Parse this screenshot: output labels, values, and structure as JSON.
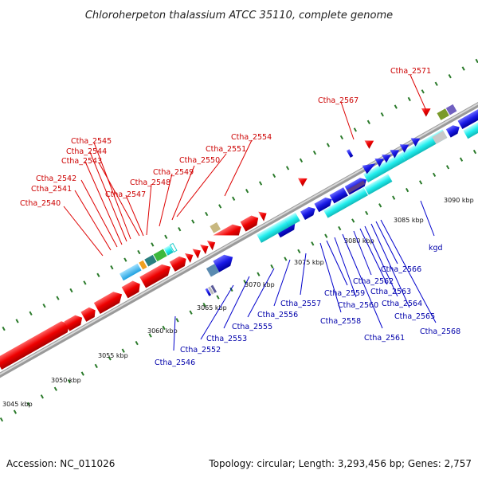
{
  "title": "Chloroherpeton thalassium ATCC 35110, complete genome",
  "footer": {
    "accession": "Accession: NC_011026",
    "topology": "Topology: circular; Length: 3,293,456 bp; Genes: 2,757"
  },
  "ticks": [
    "3045 kbp",
    "3050 kbp",
    "3055 kbp",
    "3060 kbp",
    "3065 kbp",
    "3070 kbp",
    "3075 kbp",
    "3080 kbp",
    "3085 kbp",
    "3090 kbp"
  ],
  "labels_forward": [
    "Ctha_2540",
    "Ctha_2541",
    "Ctha_2542",
    "Ctha_2543",
    "Ctha_2544",
    "Ctha_2545",
    "Ctha_2547",
    "Ctha_2548",
    "Ctha_2549",
    "Ctha_2550",
    "Ctha_2551",
    "Ctha_2554",
    "Ctha_2567",
    "Ctha_2571"
  ],
  "labels_reverse": [
    "Ctha_2546",
    "Ctha_2552",
    "Ctha_2553",
    "Ctha_2555",
    "Ctha_2556",
    "Ctha_2557",
    "Ctha_2558",
    "Ctha_2559",
    "Ctha_2560",
    "Ctha_2561",
    "Ctha_2562",
    "Ctha_2563",
    "Ctha_2564",
    "Ctha_2565",
    "Ctha_2566",
    "Ctha_2568",
    "kgd"
  ],
  "colors": {
    "forward_label": "#cc0000",
    "reverse_label": "#0000aa",
    "forward_gene": "#ee0000",
    "reverse_gene": "#1a1ae6",
    "rna_gene": "#22eeee",
    "backbone": "#888888",
    "tick": "#2a7a2a"
  }
}
